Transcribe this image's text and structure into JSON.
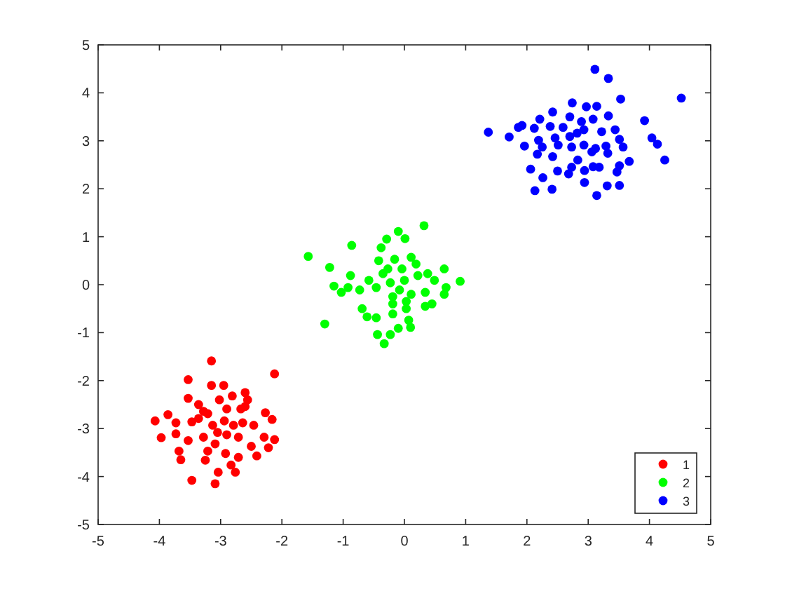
{
  "chart_data": {
    "type": "scatter",
    "xlim": [
      -5,
      5
    ],
    "ylim": [
      -5,
      5
    ],
    "xticks": [
      -5,
      -4,
      -3,
      -2,
      -1,
      0,
      1,
      2,
      3,
      4,
      5
    ],
    "yticks": [
      -5,
      -4,
      -3,
      -2,
      -1,
      0,
      1,
      2,
      3,
      4,
      5
    ],
    "grid": false,
    "legend": "bottom right",
    "marker": "circle",
    "series": [
      {
        "name": "1",
        "color": "#ff0000",
        "x": [
          -3.15,
          -2.12,
          -3.53,
          -3.15,
          -2.95,
          -2.81,
          -2.6,
          -3.53,
          -3.36,
          -3.02,
          -2.56,
          -3.86,
          -4.07,
          -3.73,
          -3.47,
          -3.21,
          -2.9,
          -2.67,
          -2.27,
          -2.16,
          -2.46,
          -3.97,
          -3.73,
          -3.53,
          -3.28,
          -3.05,
          -2.79,
          -2.71,
          -2.29,
          -2.12,
          -3.68,
          -3.65,
          -3.21,
          -3.09,
          -2.92,
          -2.71,
          -2.5,
          -2.41,
          -2.22,
          -3.25,
          -2.83,
          -2.76,
          -3.04,
          -3.47,
          -3.09,
          -3.36,
          -3.13,
          -2.9,
          -2.64,
          -3.28,
          -2.94,
          -2.6
        ],
        "values": [
          -1.59,
          -1.86,
          -1.98,
          -2.1,
          -2.1,
          -2.32,
          -2.25,
          -2.37,
          -2.5,
          -2.4,
          -2.4,
          -2.71,
          -2.84,
          -2.88,
          -2.86,
          -2.69,
          -2.59,
          -2.59,
          -2.67,
          -2.81,
          -2.93,
          -3.19,
          -3.11,
          -3.25,
          -3.18,
          -3.08,
          -2.93,
          -3.18,
          -3.18,
          -3.23,
          -3.47,
          -3.65,
          -3.47,
          -3.32,
          -3.52,
          -3.6,
          -3.37,
          -3.57,
          -3.4,
          -3.66,
          -3.76,
          -3.91,
          -3.91,
          -4.08,
          -4.15,
          -2.79,
          -2.93,
          -3.13,
          -2.88,
          -2.64,
          -2.84,
          -2.54
        ]
      },
      {
        "name": "2",
        "color": "#00ff00",
        "x": [
          0.32,
          -0.1,
          0.01,
          -0.29,
          -0.86,
          -0.38,
          -1.57,
          -1.22,
          -0.42,
          -0.16,
          0.11,
          0.19,
          -0.88,
          -0.35,
          -0.04,
          0.38,
          0.65,
          0.49,
          0.91,
          0.68,
          -1.15,
          -1.03,
          -0.92,
          -0.73,
          -0.58,
          -0.23,
          0,
          0.22,
          -0.46,
          -0.19,
          0.11,
          0.34,
          0.65,
          -0.69,
          -0.61,
          -0.46,
          -0.19,
          0.03,
          0.34,
          0.45,
          -1.3,
          -0.19,
          0.07,
          0.1,
          -0.1,
          -0.44,
          -0.23,
          -0.33,
          -0.08,
          -0.27,
          0.03
        ],
        "values": [
          1.23,
          1.11,
          0.96,
          0.95,
          0.82,
          0.77,
          0.59,
          0.36,
          0.5,
          0.53,
          0.57,
          0.43,
          0.19,
          0.23,
          0.33,
          0.23,
          0.33,
          0.09,
          0.07,
          -0.06,
          -0.03,
          -0.16,
          -0.06,
          -0.11,
          0.09,
          0.04,
          0.09,
          0.19,
          -0.06,
          -0.25,
          -0.2,
          -0.16,
          -0.2,
          -0.5,
          -0.67,
          -0.69,
          -0.4,
          -0.35,
          -0.45,
          -0.4,
          -0.82,
          -0.61,
          -0.74,
          -0.89,
          -0.91,
          -1.04,
          -1.04,
          -1.23,
          -0.11,
          0.33,
          -0.5
        ]
      },
      {
        "name": "3",
        "color": "#0000ff",
        "x": [
          3.11,
          3.33,
          4.52,
          3.53,
          2.74,
          2.97,
          3.14,
          2.42,
          2.21,
          2.7,
          3.92,
          3.33,
          1.37,
          1.86,
          1.92,
          2.12,
          2.38,
          2.59,
          2.89,
          3.08,
          2.93,
          3.22,
          3.44,
          1.71,
          2.46,
          2.7,
          2.82,
          3.51,
          4.04,
          4.13,
          1.96,
          2.19,
          2.25,
          2.51,
          2.73,
          2.93,
          3.12,
          3.29,
          3.57,
          2.17,
          2.42,
          2.83,
          3.06,
          3.32,
          3.67,
          4.25,
          2.06,
          2.5,
          2.73,
          2.94,
          3.08,
          3.18,
          3.51,
          3.47,
          2.26,
          2.68,
          2.94,
          2.13,
          2.41,
          3.14,
          3.31,
          3.51
        ],
        "values": [
          4.49,
          4.3,
          3.89,
          3.87,
          3.79,
          3.71,
          3.72,
          3.6,
          3.45,
          3.5,
          3.42,
          3.52,
          3.18,
          3.28,
          3.32,
          3.26,
          3.3,
          3.28,
          3.4,
          3.45,
          3.23,
          3.19,
          3.23,
          3.08,
          3.06,
          3.09,
          3.16,
          3.03,
          3.06,
          2.93,
          2.89,
          3.01,
          2.87,
          2.91,
          2.87,
          2.91,
          2.84,
          2.89,
          2.87,
          2.72,
          2.67,
          2.6,
          2.77,
          2.74,
          2.57,
          2.6,
          2.41,
          2.37,
          2.45,
          2.38,
          2.46,
          2.45,
          2.48,
          2.35,
          2.23,
          2.31,
          2.13,
          1.96,
          1.99,
          1.86,
          2.06,
          2.07
        ]
      }
    ]
  }
}
